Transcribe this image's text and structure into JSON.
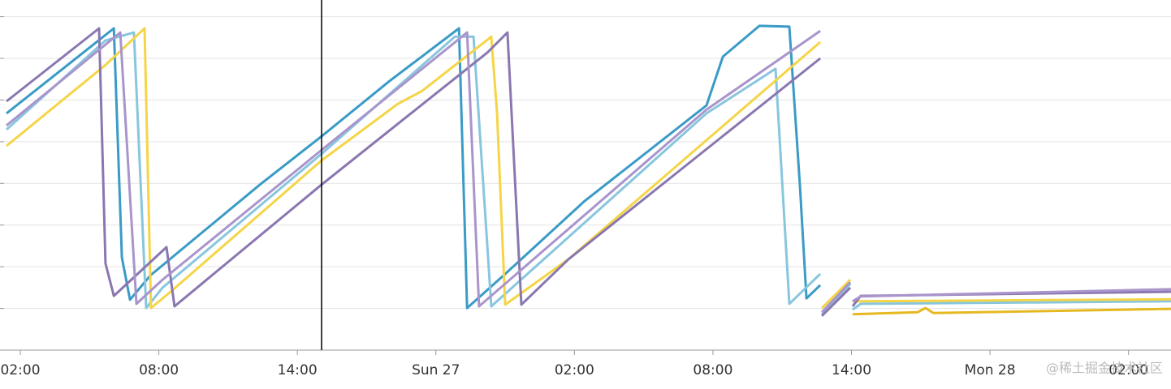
{
  "chart_data": {
    "type": "line",
    "watermark": "@稀土掘金技术社区",
    "xlim": [
      -0.88,
      49.84
    ],
    "xticks": [
      {
        "value": 0,
        "label": "02:00"
      },
      {
        "value": 6,
        "label": "08:00"
      },
      {
        "value": 12,
        "label": "14:00"
      },
      {
        "value": 18,
        "label": "Sun 27"
      },
      {
        "value": 24,
        "label": "02:00"
      },
      {
        "value": 30,
        "label": "08:00"
      },
      {
        "value": 36,
        "label": "14:00"
      },
      {
        "value": 42,
        "label": "Mon 28"
      },
      {
        "value": 48,
        "label": "02:00"
      }
    ],
    "ylim": [
      0,
      8.4
    ],
    "yticks": [
      0,
      1,
      2,
      3,
      4,
      5,
      6,
      7,
      8
    ],
    "grid": true,
    "series": [
      {
        "color": "#3a9bc6",
        "x": [
          -0.6,
          4.05,
          4.4,
          4.75,
          5.63,
          10.38,
          13.05,
          16.0,
          19.0,
          19.35,
          20.93,
          24.45,
          29.72,
          30.43,
          32.01,
          33.31,
          33.77,
          34.05,
          34.65
        ],
        "values": [
          5.68,
          7.72,
          2.22,
          1.21,
          1.79,
          3.97,
          5.13,
          6.46,
          7.72,
          1.01,
          1.79,
          3.58,
          5.87,
          7.04,
          7.78,
          7.76,
          3.93,
          1.24,
          1.56
        ]
      },
      {
        "color": "#88c6de",
        "x": [
          -0.6,
          3.69,
          4.92,
          5.45,
          6.16,
          13.05,
          18.82,
          19.63,
          20.4,
          29.72,
          32.71,
          33.31,
          34.65,
          null,
          34.72,
          35.95,
          null,
          36.05,
          36.4,
          49.84
        ],
        "values": [
          5.29,
          7.43,
          7.62,
          1.01,
          1.5,
          4.71,
          7.52,
          7.52,
          1.05,
          5.68,
          6.75,
          1.11,
          1.83,
          null,
          0.86,
          1.59,
          null,
          0.97,
          1.11,
          1.17
        ]
      },
      {
        "color": "#f5d547",
        "x": [
          -0.6,
          3.69,
          5.38,
          5.66,
          6.51,
          13.05,
          16.36,
          17.41,
          20.4,
          20.65,
          21.0,
          23.74,
          34.65,
          null,
          34.72,
          35.95,
          null,
          36.05,
          49.84
        ],
        "values": [
          4.9,
          6.84,
          7.72,
          1.01,
          1.4,
          4.55,
          5.91,
          6.22,
          7.52,
          5.68,
          1.09,
          2.18,
          7.39,
          null,
          1.01,
          1.69,
          null,
          1.17,
          1.22
        ]
      },
      {
        "color": "#e6b820",
        "x": [
          36.05,
          38.87,
          39.2,
          39.55,
          49.84
        ],
        "values": [
          0.86,
          0.91,
          1.01,
          0.89,
          0.99
        ]
      },
      {
        "color": "#8a77b0",
        "x": [
          -0.6,
          3.41,
          3.69,
          4.05,
          6.33,
          6.68,
          13.05,
          20.23,
          21.1,
          21.7,
          23.74,
          34.65,
          null,
          34.72,
          35.95,
          null,
          36.05,
          36.4,
          49.84
        ],
        "values": [
          5.97,
          7.72,
          2.08,
          1.3,
          2.47,
          1.05,
          3.97,
          7.14,
          7.62,
          1.09,
          2.18,
          7.0,
          null,
          0.82,
          1.5,
          null,
          1.05,
          1.3,
          1.4
        ]
      },
      {
        "color": "#a995cc",
        "x": [
          -0.6,
          4.33,
          5.03,
          6.16,
          13.05,
          19.35,
          19.87,
          29.72,
          34.65,
          null,
          34.72,
          35.95,
          null,
          36.05,
          36.4,
          49.84
        ],
        "values": [
          5.39,
          7.62,
          1.11,
          1.69,
          4.8,
          7.62,
          1.05,
          5.77,
          7.66,
          null,
          0.91,
          1.63,
          null,
          1.17,
          1.29,
          1.46
        ]
      }
    ]
  }
}
